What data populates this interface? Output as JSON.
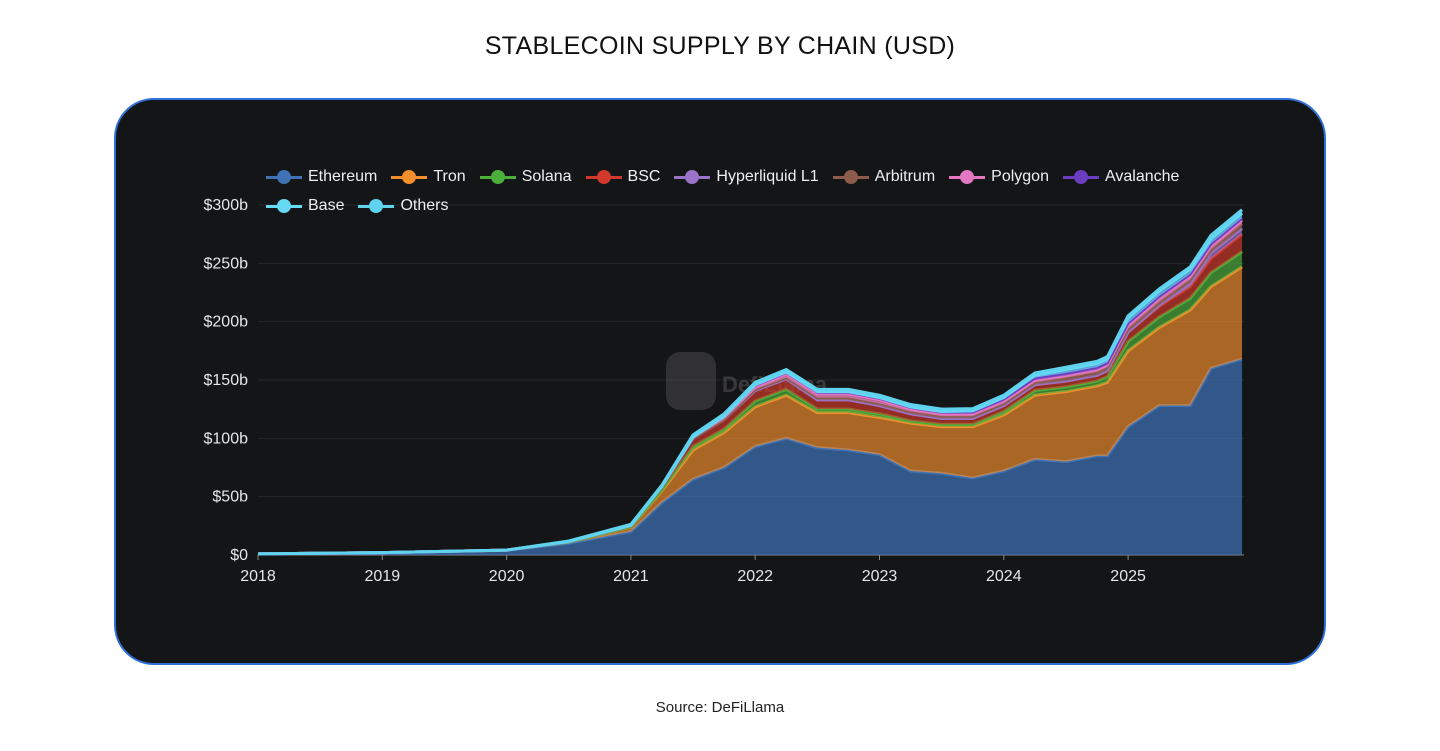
{
  "title": "STABLECOIN SUPPLY BY CHAIN (USD)",
  "source": "Source: DeFiLlama",
  "watermark": "DefiLlama",
  "chart_data": {
    "type": "area",
    "stacked": true,
    "title": "STABLECOIN SUPPLY BY CHAIN (USD)",
    "xlabel": "",
    "ylabel": "",
    "ylim": [
      0,
      300
    ],
    "y_ticks": [
      "$0",
      "$50b",
      "$100b",
      "$150b",
      "$200b",
      "$250b",
      "$300b"
    ],
    "x_ticks": [
      "2018",
      "2019",
      "2020",
      "2021",
      "2022",
      "2023",
      "2024",
      "2025"
    ],
    "grid": true,
    "legend": "top",
    "x": [
      "2018-01",
      "2019-01",
      "2020-01",
      "2020-07",
      "2021-01",
      "2021-04",
      "2021-07",
      "2021-10",
      "2022-01",
      "2022-04",
      "2022-07",
      "2022-10",
      "2023-01",
      "2023-04",
      "2023-07",
      "2023-10",
      "2024-01",
      "2024-04",
      "2024-07",
      "2024-10",
      "2024-11",
      "2025-01",
      "2025-04",
      "2025-07",
      "2025-09",
      "2025-12"
    ],
    "series": [
      {
        "name": "Ethereum",
        "color": "#3f72b5",
        "values": [
          1,
          2,
          4,
          10,
          20,
          45,
          65,
          75,
          93,
          100,
          92,
          90,
          86,
          72,
          70,
          66,
          72,
          82,
          80,
          85,
          85,
          110,
          128,
          128,
          160,
          168
        ]
      },
      {
        "name": "Tron",
        "color": "#f28e2c",
        "values": [
          0,
          0,
          0.2,
          1,
          4,
          10,
          25,
          30,
          34,
          37,
          30,
          32,
          32,
          41,
          40,
          44,
          48,
          55,
          60,
          60,
          63,
          65,
          67,
          82,
          70,
          79
        ]
      },
      {
        "name": "Solana",
        "color": "#4caf3c",
        "values": [
          0,
          0,
          0,
          0,
          0.3,
          1,
          3,
          3,
          5,
          5,
          3,
          3,
          3,
          2,
          2,
          2,
          3,
          4,
          4,
          4,
          5,
          8,
          9,
          10,
          12,
          13
        ]
      },
      {
        "name": "BSC",
        "color": "#d0392b",
        "values": [
          0,
          0,
          0,
          0.5,
          1,
          3,
          7,
          8,
          9,
          9,
          8,
          8,
          7,
          6,
          5,
          5,
          5,
          5,
          5,
          5,
          5,
          8,
          9,
          10,
          12,
          15
        ]
      },
      {
        "name": "Hyperliquid L1",
        "color": "#9a73c9",
        "values": [
          0,
          0,
          0,
          0,
          0,
          0,
          0,
          0,
          0,
          0,
          0,
          0,
          0,
          0,
          0,
          0,
          0,
          0,
          0,
          0,
          0,
          0,
          1,
          3,
          5,
          5
        ]
      },
      {
        "name": "Arbitrum",
        "color": "#8d5b4c",
        "values": [
          0,
          0,
          0,
          0,
          0,
          0,
          0,
          0,
          1,
          1,
          2,
          2,
          2,
          2,
          2,
          2,
          2,
          2,
          3,
          3,
          3,
          3,
          3,
          3,
          3,
          4
        ]
      },
      {
        "name": "Polygon",
        "color": "#e377c2",
        "values": [
          0,
          0,
          0,
          0,
          0,
          0,
          1,
          2,
          2,
          3,
          3,
          3,
          3,
          2,
          2,
          2,
          2,
          2,
          2,
          2,
          2,
          3,
          3,
          3,
          3,
          3
        ]
      },
      {
        "name": "Avalanche",
        "color": "#6a3dc0",
        "values": [
          0,
          0,
          0,
          0,
          0,
          0,
          0,
          1,
          2,
          2,
          2,
          2,
          2,
          2,
          2,
          2,
          2,
          2,
          2,
          2,
          2,
          2,
          2,
          2,
          2,
          2
        ]
      },
      {
        "name": "Base",
        "color": "#66d9f5",
        "values": [
          0,
          0,
          0,
          0,
          0,
          0,
          0,
          0,
          0,
          0,
          0,
          0,
          0,
          0,
          0,
          0.5,
          1,
          2,
          3,
          3,
          3,
          4,
          4,
          4,
          4,
          4
        ]
      },
      {
        "name": "Others",
        "color": "#5fd3ee",
        "values": [
          0,
          0,
          0,
          0.5,
          1,
          1,
          2,
          2,
          2,
          2,
          2,
          2,
          2,
          2,
          2,
          2,
          2,
          2,
          2,
          2,
          2,
          2,
          2,
          2,
          3,
          3
        ]
      }
    ]
  }
}
